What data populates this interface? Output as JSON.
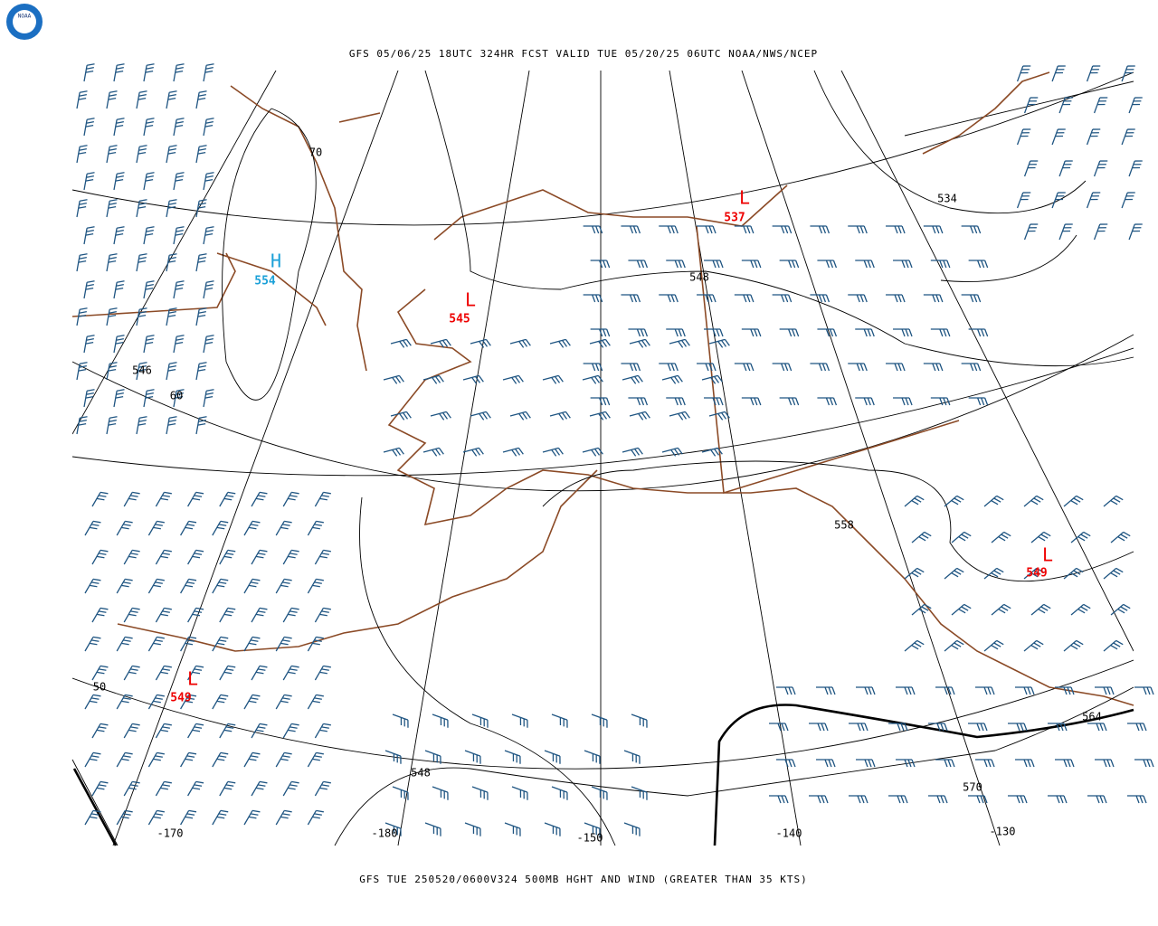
{
  "header": {
    "title": "GFS 05/06/25 18UTC 324HR FCST VALID TUE 05/20/25 06UTC NOAA/NWS/NCEP"
  },
  "footer": {
    "caption": "GFS TUE 250520/0600V324 500MB HGHT AND WIND (GREATER THAN 35 KTS)"
  },
  "logo": {
    "text": "NOAA"
  },
  "centers": [
    {
      "label": "H",
      "value": 554
    },
    {
      "label": "L",
      "value": 537
    },
    {
      "label": "L",
      "value": 545
    },
    {
      "label": "L",
      "value": 549
    },
    {
      "label": "L",
      "value": 549
    }
  ],
  "contour_labels": [
    534,
    548,
    546,
    558,
    548,
    570,
    564
  ],
  "lat_labels": [
    70,
    60,
    50
  ],
  "lon_labels": [
    -170,
    -180,
    -150,
    -140,
    -130
  ]
}
